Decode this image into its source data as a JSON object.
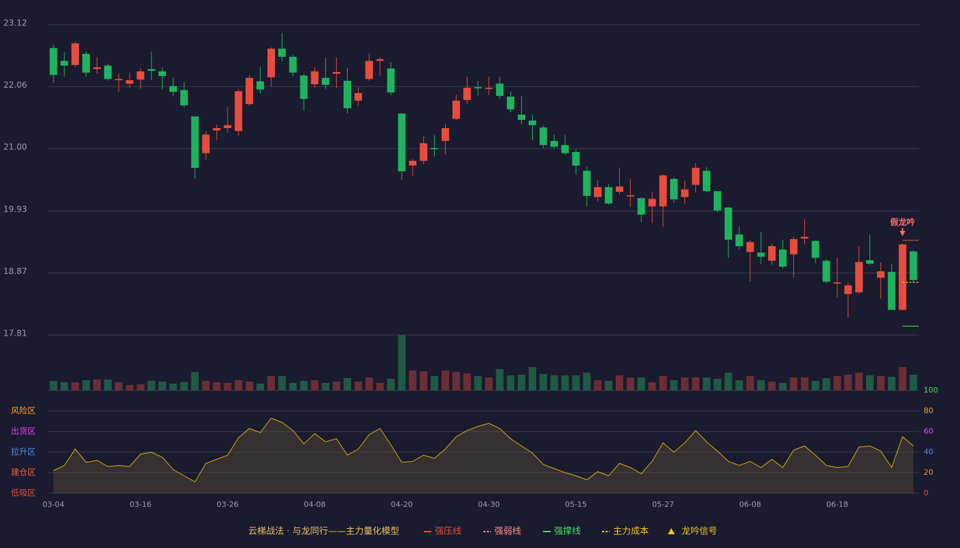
{
  "chart_data": {
    "type": "candlestick",
    "categories": [
      "03-04",
      null,
      null,
      null,
      null,
      null,
      null,
      null,
      "03-16",
      null,
      null,
      null,
      null,
      null,
      null,
      null,
      "03-26",
      null,
      null,
      null,
      null,
      null,
      null,
      null,
      "04-08",
      null,
      null,
      null,
      null,
      null,
      null,
      null,
      "04-20",
      null,
      null,
      null,
      null,
      null,
      null,
      null,
      "04-30",
      null,
      null,
      null,
      null,
      null,
      null,
      null,
      "05-15",
      null,
      null,
      null,
      null,
      null,
      null,
      null,
      "05-27",
      null,
      null,
      null,
      null,
      null,
      null,
      null,
      "06-08",
      null,
      null,
      null,
      null,
      null,
      null,
      null,
      "06-18",
      null,
      null,
      null,
      null,
      null,
      null,
      null
    ],
    "open": [
      22.72,
      22.5,
      22.43,
      22.62,
      22.36,
      22.42,
      22.17,
      22.11,
      22.18,
      22.36,
      22.32,
      22.07,
      22.0,
      21.55,
      20.92,
      21.31,
      21.35,
      21.3,
      21.76,
      22.15,
      22.22,
      22.71,
      22.57,
      22.25,
      22.1,
      22.21,
      22.28,
      22.16,
      21.82,
      22.19,
      22.5,
      22.37,
      21.6,
      20.71,
      20.79,
      21.01,
      21.13,
      21.51,
      21.83,
      22.05,
      22.02,
      22.11,
      21.89,
      21.58,
      21.48,
      21.36,
      21.13,
      21.06,
      20.94,
      20.62,
      20.17,
      20.34,
      20.26,
      20.18,
      20.15,
      20.01,
      20.01,
      20.48,
      20.17,
      20.38,
      20.62,
      20.27,
      19.99,
      19.53,
      19.23,
      19.22,
      19.08,
      19.27,
      19.19,
      19.46,
      19.42,
      19.08,
      18.69,
      18.51,
      18.54,
      19.09,
      18.79,
      18.89,
      18.24,
      19.24
    ],
    "high": [
      22.78,
      22.65,
      22.83,
      22.66,
      22.57,
      22.45,
      22.28,
      22.3,
      22.37,
      22.66,
      22.39,
      22.21,
      22.14,
      21.55,
      21.3,
      21.41,
      21.71,
      22.02,
      22.25,
      22.4,
      22.73,
      22.98,
      22.6,
      22.28,
      22.39,
      22.55,
      22.56,
      22.38,
      22.05,
      22.62,
      22.56,
      22.48,
      21.6,
      20.82,
      21.21,
      21.23,
      21.42,
      21.92,
      22.23,
      22.16,
      22.23,
      22.23,
      21.98,
      21.9,
      21.58,
      21.39,
      21.24,
      21.23,
      20.99,
      20.69,
      20.46,
      20.39,
      20.67,
      20.48,
      20.17,
      20.26,
      20.56,
      20.51,
      20.45,
      20.75,
      20.68,
      20.27,
      20.0,
      19.67,
      19.43,
      19.57,
      19.37,
      19.44,
      19.49,
      19.79,
      19.43,
      19.11,
      19.13,
      18.71,
      19.33,
      19.53,
      19.05,
      19.03,
      19.38,
      19.26
    ],
    "low": [
      22.12,
      22.23,
      22.4,
      22.23,
      22.28,
      22.16,
      21.97,
      22.04,
      22.02,
      22.17,
      22.01,
      21.89,
      21.7,
      20.49,
      20.81,
      21.14,
      21.27,
      21.22,
      21.73,
      21.94,
      22.07,
      22.49,
      22.23,
      21.65,
      22.04,
      22.02,
      22.03,
      21.6,
      21.73,
      22.16,
      22.25,
      21.91,
      20.46,
      20.54,
      20.73,
      20.86,
      20.9,
      21.49,
      21.76,
      21.9,
      21.92,
      21.85,
      21.62,
      21.42,
      21.14,
      21.0,
      20.99,
      20.89,
      20.55,
      20.01,
      20.1,
      20.04,
      20.22,
      20.0,
      19.74,
      19.72,
      19.66,
      20.07,
      20.06,
      20.25,
      20.25,
      19.91,
      19.13,
      19.27,
      18.72,
      19.02,
      19.01,
      18.95,
      18.79,
      19.36,
      19.04,
      18.69,
      18.45,
      18.11,
      18.51,
      19.01,
      18.43,
      18.24,
      18.23,
      18.71
    ],
    "close": [
      22.26,
      22.42,
      22.8,
      22.3,
      22.39,
      22.19,
      22.19,
      22.17,
      22.32,
      22.33,
      22.24,
      21.97,
      21.74,
      20.67,
      21.24,
      21.35,
      21.4,
      21.98,
      22.21,
      22.01,
      22.71,
      22.57,
      22.3,
      21.85,
      22.32,
      22.09,
      22.31,
      21.69,
      21.95,
      22.5,
      22.53,
      21.96,
      20.61,
      20.79,
      21.09,
      20.99,
      21.35,
      21.82,
      22.04,
      22.03,
      22.04,
      21.9,
      21.67,
      21.49,
      21.4,
      21.06,
      21.03,
      20.92,
      20.71,
      20.19,
      20.34,
      20.06,
      20.35,
      20.2,
      19.87,
      20.14,
      20.54,
      20.13,
      20.3,
      20.67,
      20.27,
      19.94,
      19.44,
      19.33,
      19.4,
      19.15,
      19.33,
      18.98,
      19.45,
      19.49,
      19.13,
      18.72,
      18.71,
      18.66,
      19.06,
      19.03,
      18.9,
      18.24,
      19.36,
      18.75
    ],
    "up_color": "#e84c3d",
    "down_color": "#1fb35f",
    "ylim": [
      17.81,
      23.12
    ],
    "yticks": [
      23.12,
      22.06,
      {
        "value": 21.0,
        "label": "21.00"
      },
      19.93,
      18.87,
      17.81
    ],
    "grid": true,
    "volume": {
      "values": [
        14,
        12,
        12,
        15,
        16,
        16,
        12,
        8,
        9,
        14,
        13,
        10,
        12,
        27,
        14,
        12,
        11,
        15,
        13,
        10,
        21,
        21,
        11,
        14,
        15,
        11,
        13,
        18,
        13,
        19,
        11,
        17,
        81,
        29,
        28,
        21,
        29,
        27,
        25,
        21,
        19,
        31,
        22,
        23,
        34,
        24,
        22,
        22,
        22,
        26,
        15,
        14,
        22,
        19,
        19,
        12,
        21,
        15,
        19,
        19,
        19,
        17,
        26,
        15,
        21,
        15,
        13,
        11,
        19,
        19,
        14,
        18,
        21,
        23,
        26,
        22,
        21,
        20,
        34,
        23
      ],
      "up_color": "#6b2e35",
      "down_color": "#1f5a45"
    },
    "oscillator": {
      "values": [
        22,
        27,
        43,
        30,
        32,
        26,
        27,
        26,
        38,
        40,
        35,
        23,
        17,
        11,
        29,
        33,
        37,
        54,
        63,
        59,
        73,
        69,
        61,
        48,
        58,
        50,
        53,
        37,
        43,
        57,
        63,
        47,
        30,
        31,
        37,
        34,
        43,
        55,
        61,
        65,
        68,
        63,
        53,
        46,
        39,
        28,
        24,
        20,
        17,
        13,
        21,
        17,
        29,
        25,
        19,
        31,
        49,
        40,
        49,
        61,
        50,
        41,
        31,
        27,
        31,
        25,
        33,
        25,
        42,
        46,
        37,
        27,
        25,
        26,
        45,
        46,
        41,
        25,
        55,
        46
      ],
      "color": "#d4b000",
      "ylim": [
        0,
        100
      ],
      "yticks": [
        0,
        20,
        40,
        60,
        80,
        100
      ],
      "ytick_colors": [
        "#e84c3d",
        "#f0873a",
        "#4f8ef7",
        "#e040fb",
        "#f0a030",
        "#4cd964"
      ],
      "zones": [
        {
          "label": "风险区",
          "value": 80,
          "color": "#f0a030"
        },
        {
          "label": "出货区",
          "value": 60,
          "color": "#e040fb"
        },
        {
          "label": "拉升区",
          "value": 40,
          "color": "#4f8ef7"
        },
        {
          "label": "建仓区",
          "value": 20,
          "color": "#f0603a"
        },
        {
          "label": "低吸区",
          "value": 0,
          "color": "#e84c3d"
        }
      ]
    },
    "lines": [
      {
        "name": "强压线",
        "color": "#e84c3d",
        "value": 19.43
      },
      {
        "name": "强弱线",
        "color": "#ff8a8a",
        "dashed": true
      },
      {
        "name": "强撑线",
        "color": "#4cd964",
        "value": 17.96
      },
      {
        "name": "主力成本",
        "color": "#f5c518",
        "value": 18.71,
        "dashed": true
      }
    ],
    "signal": {
      "name": "龙吟信号",
      "color": "#f5c518"
    },
    "annotation": {
      "text": "假龙吟",
      "index": 78,
      "color": "#ff6b6b"
    },
    "legend_title": "云梯战法 · 与龙同行——主力量化模型"
  }
}
